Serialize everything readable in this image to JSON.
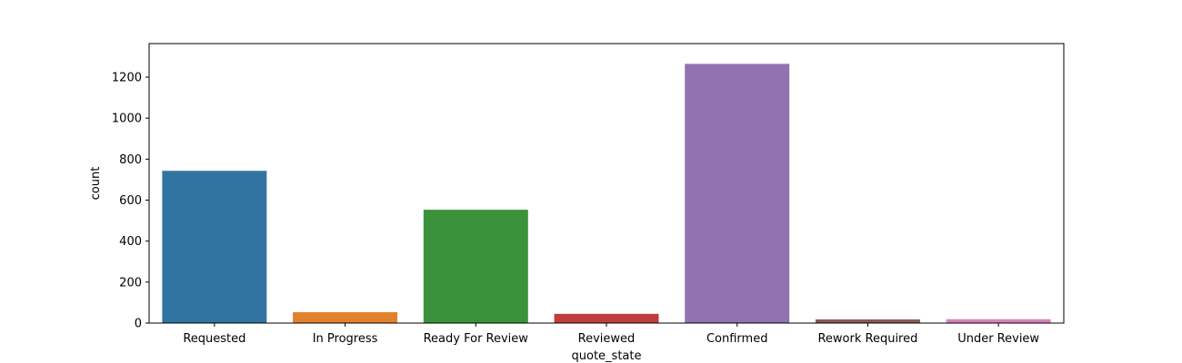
{
  "chart_data": {
    "type": "bar",
    "xlabel": "quote_state",
    "ylabel": "count",
    "categories": [
      "Requested",
      "In Progress",
      "Ready For Review",
      "Reviewed",
      "Confirmed",
      "Rework Required",
      "Under Review"
    ],
    "values": [
      743,
      53,
      553,
      45,
      1265,
      18,
      19
    ],
    "colors": [
      "#3274a1",
      "#e1812c",
      "#3a923a",
      "#c03d3e",
      "#9372b2",
      "#845b53",
      "#d684bd"
    ],
    "yticks": [
      0,
      200,
      400,
      600,
      800,
      1000,
      1200
    ],
    "ylim": [
      0,
      1364
    ],
    "grid": false,
    "legend": "none"
  }
}
